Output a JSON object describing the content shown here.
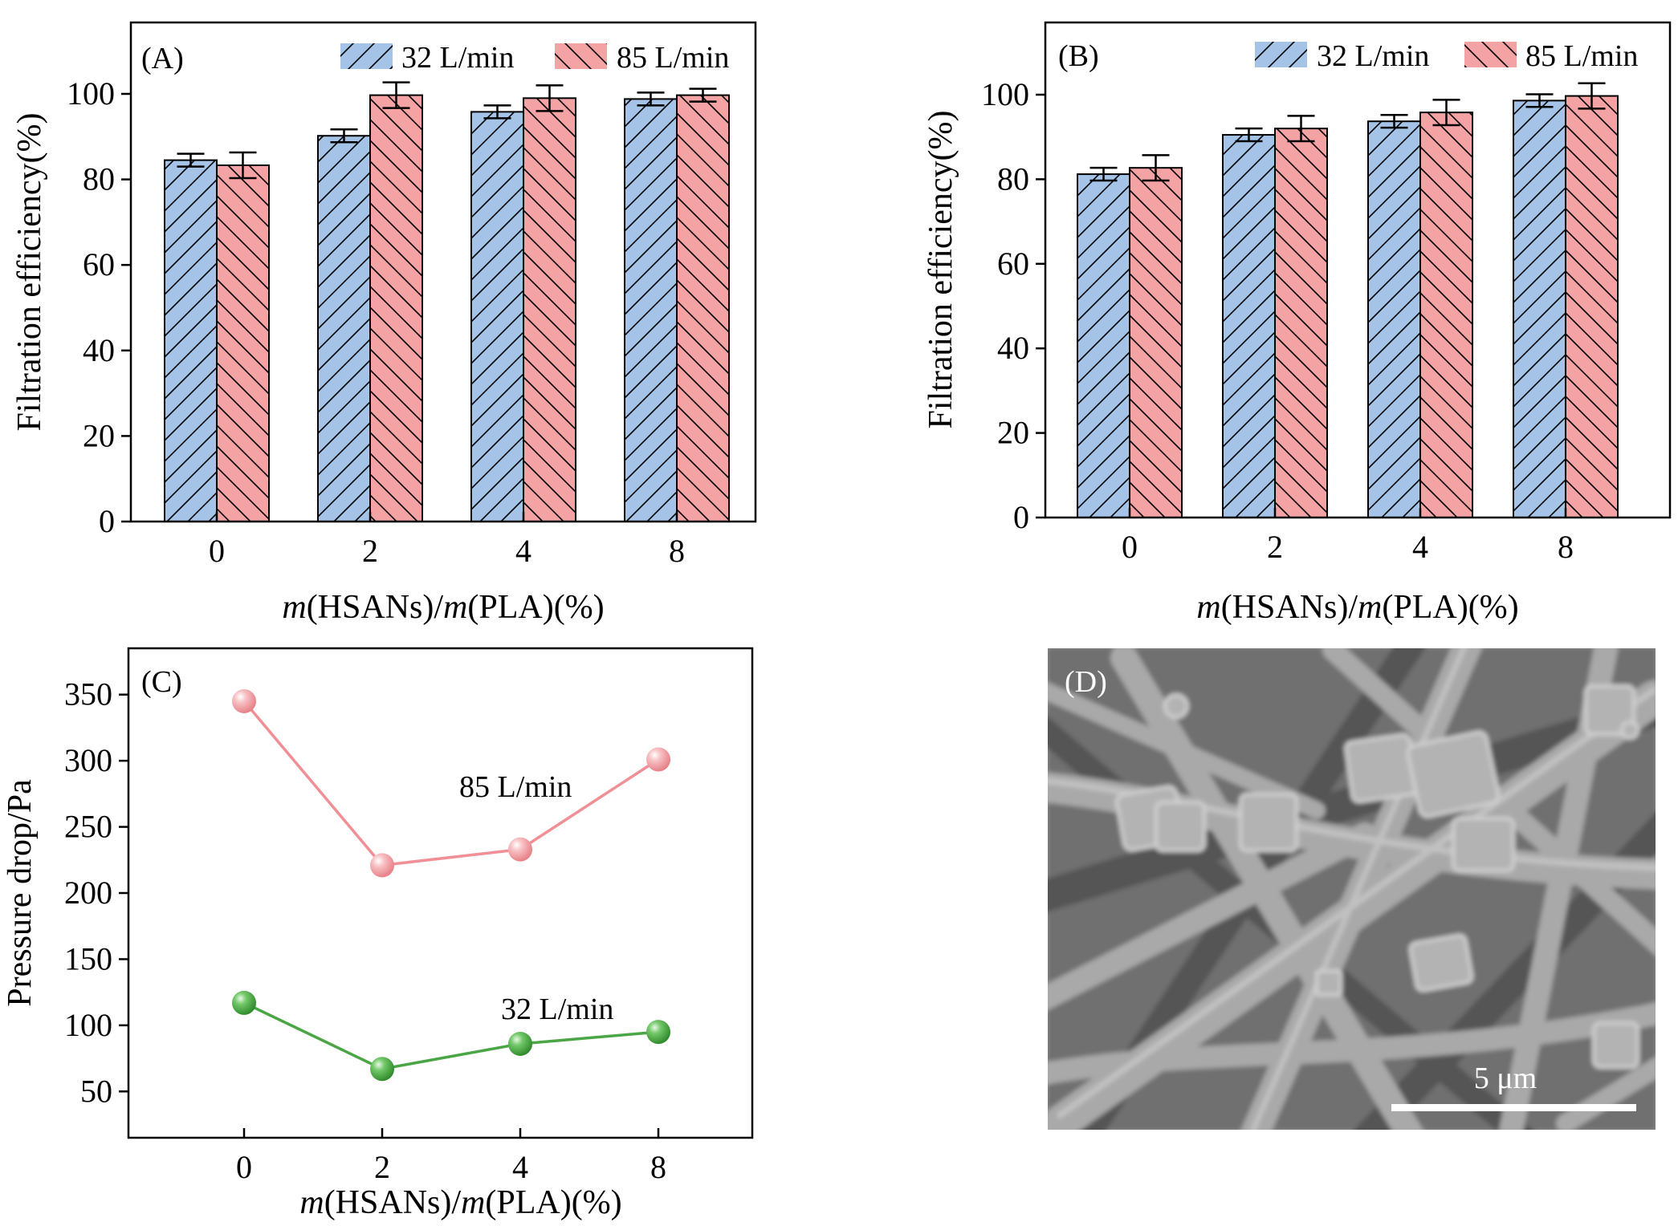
{
  "colors": {
    "s32": "#a4c3e6",
    "s85": "#f4a3a5",
    "line85": "#f08f95",
    "line32": "#4aa545",
    "sem_bg": "#8a8a8a"
  },
  "chart_data": [
    {
      "panel": "(A)",
      "type": "bar",
      "categories": [
        "0",
        "2",
        "4",
        "8"
      ],
      "series": [
        {
          "name": "32 L/min",
          "values": [
            84.5,
            90.2,
            95.8,
            98.8
          ],
          "errors": [
            1.5,
            1.5,
            1.5,
            1.5
          ]
        },
        {
          "name": "85 L/min",
          "values": [
            83.3,
            99.7,
            99.0,
            99.7
          ],
          "errors": [
            3.0,
            3.0,
            3.0,
            1.5
          ]
        }
      ],
      "xlabel_italic": "m",
      "xlabel_a": "(HSANs)/",
      "xlabel_b": "(PLA)(%)",
      "ylabel": "Filtration efficiency(%)",
      "ylim": [
        0,
        100
      ],
      "yticks": [
        0,
        20,
        40,
        60,
        80,
        100
      ],
      "legend": "top-right"
    },
    {
      "panel": "(B)",
      "type": "bar",
      "categories": [
        "0",
        "2",
        "4",
        "8"
      ],
      "series": [
        {
          "name": "32 L/min",
          "values": [
            81.2,
            90.5,
            93.7,
            98.6
          ],
          "errors": [
            1.5,
            1.5,
            1.5,
            1.5
          ]
        },
        {
          "name": "85 L/min",
          "values": [
            82.7,
            92.0,
            95.8,
            99.7
          ],
          "errors": [
            3.0,
            3.0,
            3.0,
            3.0
          ]
        }
      ],
      "xlabel_italic": "m",
      "xlabel_a": "(HSANs)/",
      "xlabel_b": "(PLA)(%)",
      "ylabel": "Filtration efficiency(%)",
      "ylim": [
        0,
        100
      ],
      "yticks": [
        0,
        20,
        40,
        60,
        80,
        100
      ],
      "legend": "top-right"
    },
    {
      "panel": "(C)",
      "type": "line",
      "x": [
        "0",
        "2",
        "4",
        "8"
      ],
      "series": [
        {
          "name": "85 L/min",
          "values": [
            345,
            221,
            233,
            301
          ]
        },
        {
          "name": "32 L/min",
          "values": [
            117,
            67,
            86,
            95
          ]
        }
      ],
      "xlabel_italic": "m",
      "xlabel_a": "(HSANs)/",
      "xlabel_b": "(PLA)(%)",
      "ylabel": "Pressure drop/Pa",
      "ylim": [
        15,
        385
      ],
      "yticks": [
        50,
        100,
        150,
        200,
        250,
        300,
        350
      ]
    }
  ],
  "sem": {
    "panel": "(D)",
    "scalebar_label": "5 μm"
  }
}
